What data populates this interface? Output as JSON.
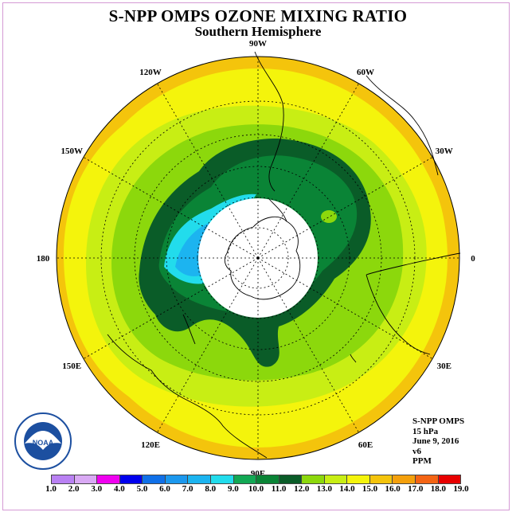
{
  "title": "S-NPP OMPS OZONE MIXING RATIO",
  "subtitle": "Southern Hemisphere",
  "longitude_labels": [
    {
      "text": "90W",
      "lon": -90
    },
    {
      "text": "60W",
      "lon": -60
    },
    {
      "text": "30W",
      "lon": -30
    },
    {
      "text": "0",
      "lon": 0
    },
    {
      "text": "30E",
      "lon": 30
    },
    {
      "text": "60E",
      "lon": 60
    },
    {
      "text": "90E",
      "lon": 90
    },
    {
      "text": "120E",
      "lon": 120
    },
    {
      "text": "150E",
      "lon": 150
    },
    {
      "text": "180",
      "lon": 180
    },
    {
      "text": "150W",
      "lon": -150
    },
    {
      "text": "120W",
      "lon": -120
    }
  ],
  "info": {
    "instrument": "S-NPP OMPS",
    "level": "15 hPa",
    "date": "June 9, 2016",
    "version": "v6",
    "units": "PPM"
  },
  "legend": {
    "ticks": [
      "1.0",
      "2.0",
      "3.0",
      "4.0",
      "5.0",
      "6.0",
      "7.0",
      "8.0",
      "9.0",
      "10.0",
      "11.0",
      "12.0",
      "13.0",
      "14.0",
      "15.0",
      "16.0",
      "17.0",
      "18.0",
      "19.0"
    ],
    "colors": [
      "#b981f3",
      "#d9a9f4",
      "#f000f0",
      "#0000ee",
      "#1070e8",
      "#1c98ee",
      "#1cb4f0",
      "#22dcec",
      "#12a854",
      "#0a8436",
      "#0a5c28",
      "#8cd80c",
      "#c8ee14",
      "#f4f40c",
      "#f4c40c",
      "#f4a00c",
      "#f46414",
      "#e80000",
      "#7c4820"
    ]
  },
  "logo": {
    "text": "NOAA",
    "ring_text": "NATIONAL OCEANIC AND ATMOSPHERIC ADMINISTRATION · U.S. DEPARTMENT OF COMMERCE"
  }
}
